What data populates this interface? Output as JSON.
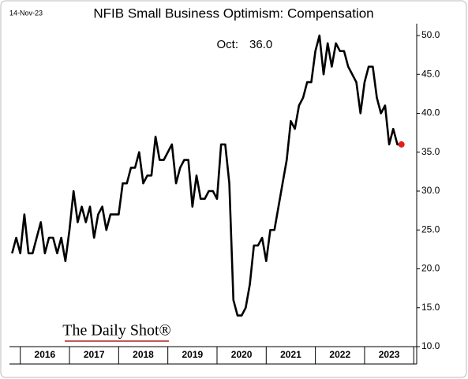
{
  "chart_data": {
    "type": "line",
    "title": "NFIB Small Business Optimism: Compensation",
    "date": "14-Nov-23",
    "annotation": "Oct:",
    "last_value_label": "36.0",
    "source": "The Daily Shot®",
    "color": "#000000",
    "last_point_color": "#e0201b",
    "x": [
      2015.833,
      2015.917,
      2016,
      2016.083,
      2016.167,
      2016.25,
      2016.333,
      2016.417,
      2016.5,
      2016.583,
      2016.667,
      2016.75,
      2016.833,
      2016.917,
      2017,
      2017.083,
      2017.167,
      2017.25,
      2017.333,
      2017.417,
      2017.5,
      2017.583,
      2017.667,
      2017.75,
      2017.833,
      2017.917,
      2018,
      2018.083,
      2018.167,
      2018.25,
      2018.333,
      2018.417,
      2018.5,
      2018.583,
      2018.667,
      2018.75,
      2018.833,
      2018.917,
      2019,
      2019.083,
      2019.167,
      2019.25,
      2019.333,
      2019.417,
      2019.5,
      2019.583,
      2019.667,
      2019.75,
      2019.833,
      2019.917,
      2020,
      2020.083,
      2020.167,
      2020.25,
      2020.333,
      2020.417,
      2020.5,
      2020.583,
      2020.667,
      2020.75,
      2020.833,
      2020.917,
      2021,
      2021.083,
      2021.167,
      2021.25,
      2021.333,
      2021.417,
      2021.5,
      2021.583,
      2021.667,
      2021.75,
      2021.833,
      2021.917,
      2022,
      2022.083,
      2022.167,
      2022.25,
      2022.333,
      2022.417,
      2022.5,
      2022.583,
      2022.667,
      2022.75,
      2022.833,
      2022.917,
      2023,
      2023.083,
      2023.167,
      2023.25,
      2023.333,
      2023.417,
      2023.5,
      2023.583,
      2023.667,
      2023.75
    ],
    "values": [
      22,
      24,
      22,
      27,
      22,
      22,
      24,
      26,
      22,
      24,
      24,
      22,
      24,
      21,
      25,
      30,
      26,
      28,
      26,
      28,
      24,
      27,
      28,
      25,
      27,
      27,
      27,
      31,
      31,
      33,
      33,
      35,
      31,
      32,
      32,
      37,
      34,
      34,
      35,
      36,
      31,
      33,
      34,
      34,
      28,
      32,
      29,
      29,
      30,
      30,
      29,
      36,
      36,
      31,
      16,
      14,
      14,
      15,
      18,
      23,
      23,
      24,
      21,
      25,
      25,
      28,
      31,
      34,
      39,
      38,
      41,
      42,
      44,
      44,
      48,
      50,
      45,
      49,
      46,
      49,
      48,
      48,
      46,
      45,
      44,
      40,
      44,
      46,
      46,
      42,
      40,
      41,
      36,
      38,
      36,
      36
    ],
    "xlim": [
      2015.78,
      2024.06
    ],
    "xticks": [
      2016,
      2017,
      2018,
      2019,
      2020,
      2021,
      2022,
      2023
    ],
    "ylim": [
      10,
      50
    ],
    "yticks": [
      {
        "value": 10,
        "label": "10.0"
      },
      {
        "value": 15,
        "label": "15.0"
      },
      {
        "value": 20,
        "label": "20.0"
      },
      {
        "value": 25,
        "label": "25.0"
      },
      {
        "value": 30,
        "label": "30.0"
      },
      {
        "value": 35,
        "label": "35.0"
      },
      {
        "value": 40,
        "label": "40.0"
      },
      {
        "value": 45,
        "label": "45.0"
      },
      {
        "value": 50,
        "label": "50.0"
      }
    ]
  }
}
